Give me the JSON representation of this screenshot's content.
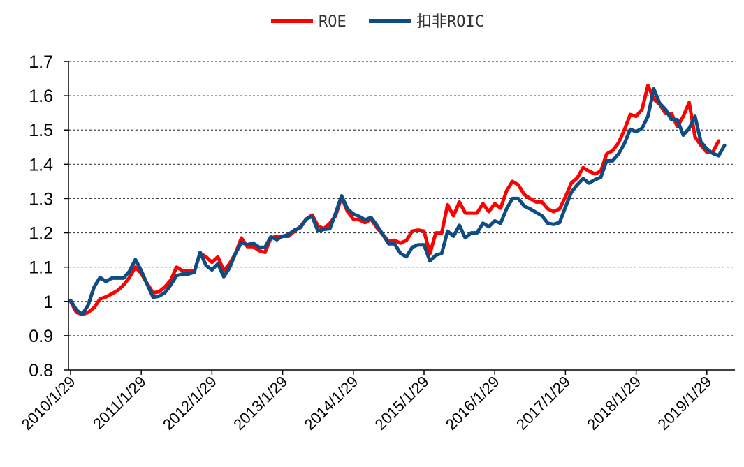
{
  "chart_data": {
    "type": "line",
    "title": "",
    "xlabel": "",
    "ylabel": "",
    "ylim": [
      0.8,
      1.7
    ],
    "yticks": [
      "1.7",
      "1.6",
      "1.5",
      "1.4",
      "1.3",
      "1.2",
      "1.1",
      "1",
      "0.9",
      "0.8"
    ],
    "xticks": [
      "2010/1/29",
      "2011/1/29",
      "2012/1/29",
      "2013/1/29",
      "2014/1/29",
      "2015/1/29",
      "2016/1/29",
      "2017/1/29",
      "2018/1/29",
      "2019/1/29"
    ],
    "x_start": "2010/1/29",
    "x_interval": "monthly",
    "grid": "horizontal dashed",
    "legend_position": "top",
    "series": [
      {
        "name": "ROE",
        "color": "#ff0000",
        "values": [
          1.0,
          0.968,
          0.962,
          0.968,
          0.982,
          1.007,
          1.013,
          1.022,
          1.032,
          1.048,
          1.07,
          1.1,
          1.082,
          1.052,
          1.025,
          1.028,
          1.042,
          1.062,
          1.1,
          1.09,
          1.09,
          1.088,
          1.14,
          1.13,
          1.114,
          1.13,
          1.09,
          1.11,
          1.14,
          1.185,
          1.16,
          1.16,
          1.148,
          1.143,
          1.185,
          1.19,
          1.19,
          1.19,
          1.205,
          1.218,
          1.24,
          1.252,
          1.22,
          1.212,
          1.228,
          1.25,
          1.305,
          1.262,
          1.24,
          1.238,
          1.23,
          1.24,
          1.215,
          1.195,
          1.175,
          1.178,
          1.17,
          1.178,
          1.205,
          1.208,
          1.205,
          1.14,
          1.2,
          1.2,
          1.282,
          1.25,
          1.29,
          1.258,
          1.258,
          1.258,
          1.285,
          1.262,
          1.285,
          1.272,
          1.322,
          1.35,
          1.34,
          1.312,
          1.3,
          1.29,
          1.29,
          1.27,
          1.262,
          1.27,
          1.305,
          1.345,
          1.36,
          1.39,
          1.38,
          1.372,
          1.38,
          1.43,
          1.44,
          1.462,
          1.5,
          1.545,
          1.54,
          1.56,
          1.63,
          1.59,
          1.575,
          1.548,
          1.548,
          1.51,
          1.54,
          1.58,
          1.48,
          1.455,
          1.435,
          1.435,
          1.468
        ]
      },
      {
        "name": "扣非ROIC",
        "color": "#0f4c81",
        "values": [
          1.003,
          0.975,
          0.962,
          0.99,
          1.042,
          1.07,
          1.058,
          1.068,
          1.068,
          1.068,
          1.088,
          1.122,
          1.09,
          1.05,
          1.012,
          1.015,
          1.025,
          1.048,
          1.075,
          1.08,
          1.08,
          1.085,
          1.143,
          1.105,
          1.092,
          1.11,
          1.072,
          1.098,
          1.14,
          1.172,
          1.165,
          1.17,
          1.158,
          1.158,
          1.188,
          1.18,
          1.19,
          1.195,
          1.208,
          1.215,
          1.24,
          1.248,
          1.205,
          1.21,
          1.212,
          1.258,
          1.308,
          1.27,
          1.255,
          1.248,
          1.238,
          1.245,
          1.222,
          1.195,
          1.168,
          1.168,
          1.14,
          1.13,
          1.158,
          1.165,
          1.165,
          1.118,
          1.135,
          1.14,
          1.205,
          1.19,
          1.222,
          1.185,
          1.2,
          1.2,
          1.228,
          1.218,
          1.235,
          1.228,
          1.27,
          1.3,
          1.3,
          1.278,
          1.27,
          1.26,
          1.25,
          1.228,
          1.225,
          1.23,
          1.275,
          1.318,
          1.34,
          1.358,
          1.345,
          1.355,
          1.362,
          1.41,
          1.41,
          1.43,
          1.46,
          1.502,
          1.495,
          1.505,
          1.54,
          1.62,
          1.578,
          1.56,
          1.53,
          1.53,
          1.485,
          1.505,
          1.54,
          1.465,
          1.445,
          1.432,
          1.425,
          1.455
        ]
      }
    ]
  }
}
